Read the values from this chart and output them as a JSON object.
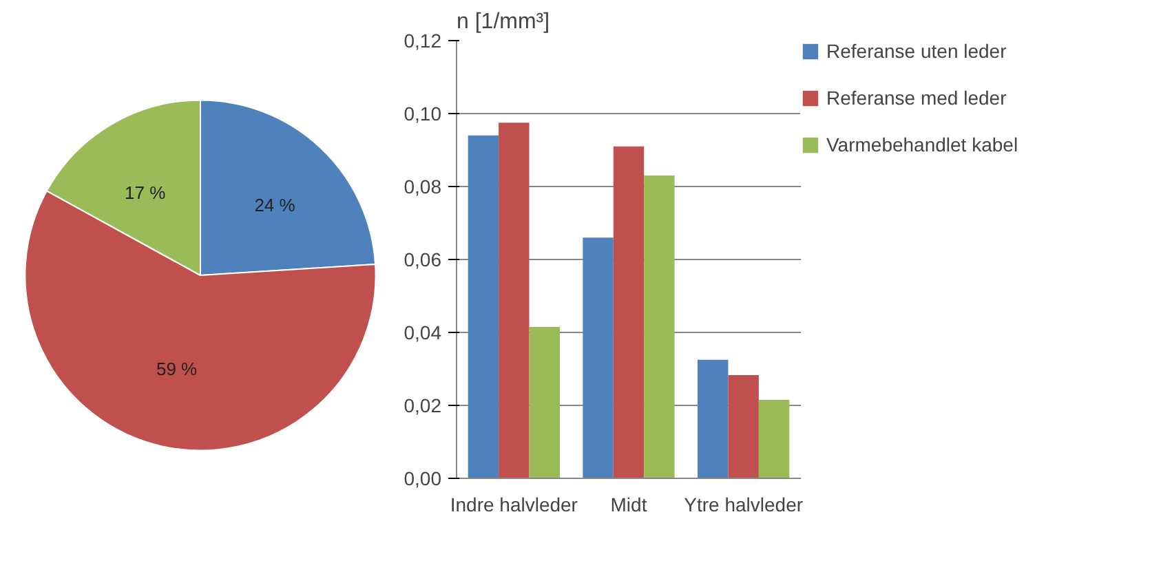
{
  "chart_data": [
    {
      "type": "pie",
      "categories": [
        null,
        null,
        null
      ],
      "values": [
        24,
        59,
        17
      ],
      "colors": [
        "#4f81bd",
        "#c0504d",
        "#9bbb59"
      ],
      "value_labels": [
        "24 %",
        "59 %",
        "17 %"
      ]
    },
    {
      "type": "bar",
      "ylabel": "n [1/mm³]",
      "categories": [
        "Indre halvleder",
        "Midt",
        "Ytre halvleder"
      ],
      "series": [
        {
          "name": "Referanse uten leder",
          "color": "#4f81bd",
          "values": [
            0.094,
            0.066,
            0.0325
          ]
        },
        {
          "name": "Referanse med leder",
          "color": "#c0504d",
          "values": [
            0.0975,
            0.091,
            0.0283
          ]
        },
        {
          "name": "Varmebehandlet kabel",
          "color": "#9bbb59",
          "values": [
            0.0415,
            0.083,
            0.0215
          ]
        }
      ],
      "ylim": [
        0,
        0.12
      ],
      "yticks": [
        {
          "value": 0,
          "label": "0,00"
        },
        {
          "value": 0.02,
          "label": "0,02"
        },
        {
          "value": 0.04,
          "label": "0,04"
        },
        {
          "value": 0.06,
          "label": "0,06"
        },
        {
          "value": 0.08,
          "label": "0,08"
        },
        {
          "value": 0.1,
          "label": "0,10"
        },
        {
          "value": 0.12,
          "label": "0,12"
        }
      ],
      "grid": "y",
      "legend": "right"
    }
  ]
}
